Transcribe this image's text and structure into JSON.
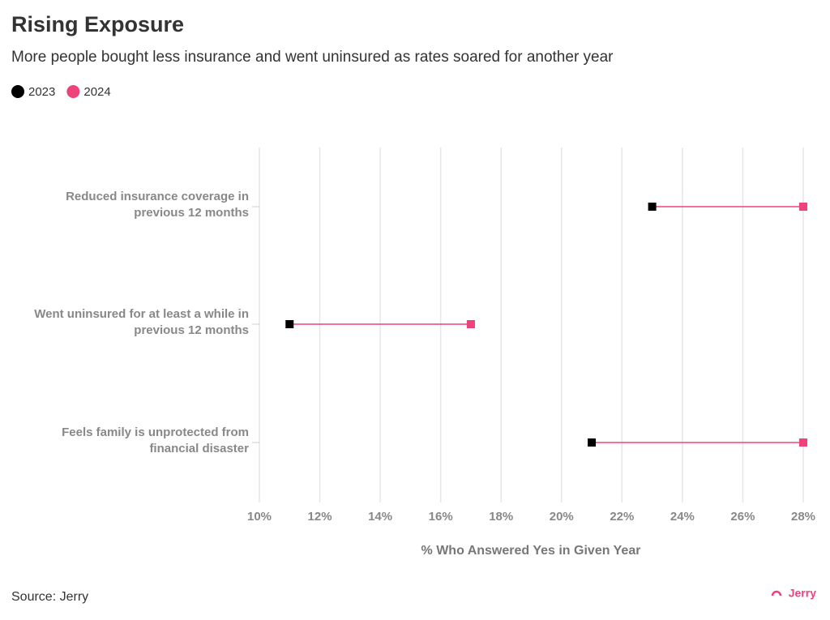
{
  "chart_data": {
    "type": "dumbbell",
    "title": "Rising Exposure",
    "subtitle": "More people bought less insurance and went uninsured as rates soared for another year",
    "categories": [
      "Reduced insurance coverage in\nprevious 12 months",
      "Went uninsured for at least a while in\nprevious 12 months",
      "Feels family is unprotected from\nfinancial disaster"
    ],
    "series": [
      {
        "name": "2023",
        "color": "#000000",
        "values": [
          23,
          11,
          21
        ]
      },
      {
        "name": "2024",
        "color": "#f0427a",
        "values": [
          28,
          17,
          28
        ]
      }
    ],
    "xlabel": "% Who Answered Yes in Given Year",
    "xlim": [
      10,
      28
    ],
    "xticks": [
      {
        "value": 10,
        "label": "10%"
      },
      {
        "value": 12,
        "label": "12%"
      },
      {
        "value": 14,
        "label": "14%"
      },
      {
        "value": 16,
        "label": "16%"
      },
      {
        "value": 18,
        "label": "18%"
      },
      {
        "value": 20,
        "label": "20%"
      },
      {
        "value": 22,
        "label": "22%"
      },
      {
        "value": 24,
        "label": "24%"
      },
      {
        "value": 26,
        "label": "26%"
      },
      {
        "value": 28,
        "label": "28%"
      }
    ],
    "grid": true,
    "source": "Source: Jerry",
    "brand": "Jerry"
  }
}
